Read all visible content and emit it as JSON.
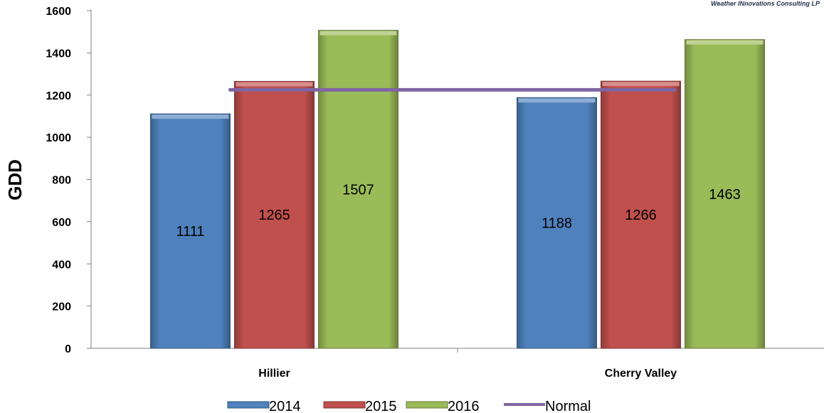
{
  "credit": "Weather INnovations Consulting LP",
  "chart_data": {
    "type": "bar",
    "categories": [
      "Hillier",
      "Cherry Valley"
    ],
    "series": [
      {
        "name": "2014",
        "values": [
          1111,
          1188
        ],
        "color": "#4f81bd"
      },
      {
        "name": "2015",
        "values": [
          1265,
          1266
        ],
        "color": "#c0504d"
      },
      {
        "name": "2016",
        "values": [
          1507,
          1463
        ],
        "color": "#9bbb59"
      }
    ],
    "normal": {
      "name": "Normal",
      "value": 1225,
      "color": "#8064a2"
    },
    "ylabel": "GDD",
    "xlabel": "",
    "ylim": [
      0,
      1600
    ],
    "yticks": [
      0,
      200,
      400,
      600,
      800,
      1000,
      1200,
      1400,
      1600
    ],
    "grid": false,
    "legend_position": "bottom"
  }
}
